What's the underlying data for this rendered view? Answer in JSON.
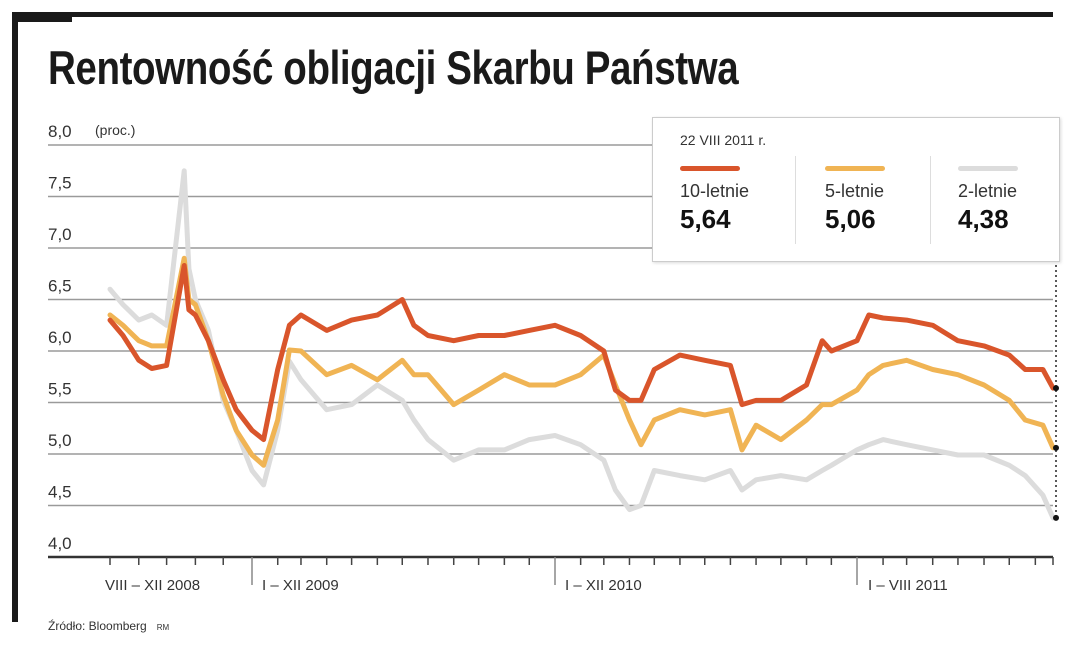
{
  "title": "Rentowność obligacji Skarbu Państwa",
  "source": "Źródło: Bloomberg",
  "credit": "RM",
  "legend": {
    "date": "22 VIII 2011 r.",
    "items": [
      {
        "name": "10-letnie",
        "value": "5,64",
        "color": "#d9552b"
      },
      {
        "name": "5-letnie",
        "value": "5,06",
        "color": "#f0b454"
      },
      {
        "name": "2-letnie",
        "value": "4,38",
        "color": "#dcdcdc"
      }
    ]
  },
  "chart_data": {
    "type": "line",
    "title": "Rentowność obligacji Skarbu Państwa",
    "ylabel": "(proc.)",
    "ylim": [
      4.0,
      8.0
    ],
    "yticks": [
      "8,0",
      "7,5",
      "7,0",
      "6,5",
      "6,0",
      "5,5",
      "5,0",
      "4,5",
      "4,0"
    ],
    "grid": true,
    "legend_position": "top-right",
    "x_periods": [
      "VIII – XII 2008",
      "I – XII 2009",
      "I – XII 2010",
      "I – VIII 2011"
    ],
    "x": [
      "2008-08-01",
      "2008-08-15",
      "2008-09-01",
      "2008-09-15",
      "2008-10-01",
      "2008-10-20",
      "2008-10-25",
      "2008-11-01",
      "2008-11-15",
      "2008-12-01",
      "2008-12-15",
      "2009-01-01",
      "2009-01-15",
      "2009-02-01",
      "2009-02-15",
      "2009-03-01",
      "2009-04-01",
      "2009-05-01",
      "2009-06-01",
      "2009-07-01",
      "2009-07-15",
      "2009-08-01",
      "2009-09-01",
      "2009-10-01",
      "2009-11-01",
      "2009-12-01",
      "2010-01-01",
      "2010-02-01",
      "2010-03-01",
      "2010-03-15",
      "2010-04-01",
      "2010-04-15",
      "2010-05-01",
      "2010-06-01",
      "2010-07-01",
      "2010-08-01",
      "2010-08-15",
      "2010-09-01",
      "2010-10-01",
      "2010-11-01",
      "2010-11-20",
      "2010-12-01",
      "2011-01-01",
      "2011-01-15",
      "2011-02-01",
      "2011-03-01",
      "2011-04-01",
      "2011-05-01",
      "2011-06-01",
      "2011-07-01",
      "2011-07-20",
      "2011-08-10",
      "2011-08-22"
    ],
    "series": [
      {
        "name": "2-letnie",
        "color": "#dcdcdc",
        "values": [
          6.6,
          6.45,
          6.3,
          6.35,
          6.25,
          7.75,
          6.8,
          6.5,
          6.2,
          5.52,
          5.23,
          4.84,
          4.7,
          5.23,
          5.9,
          5.72,
          5.43,
          5.48,
          5.67,
          5.52,
          5.33,
          5.14,
          4.94,
          5.04,
          5.04,
          5.14,
          5.18,
          5.09,
          4.94,
          4.65,
          4.46,
          4.5,
          4.84,
          4.79,
          4.75,
          4.84,
          4.65,
          4.75,
          4.79,
          4.75,
          4.84,
          4.89,
          5.04,
          5.09,
          5.14,
          5.09,
          5.04,
          4.99,
          4.99,
          4.89,
          4.79,
          4.6,
          4.38
        ]
      },
      {
        "name": "5-letnie",
        "color": "#f0b454",
        "values": [
          6.35,
          6.25,
          6.1,
          6.05,
          6.05,
          6.9,
          6.5,
          6.45,
          6.1,
          5.57,
          5.23,
          4.99,
          4.89,
          5.33,
          6.01,
          6.0,
          5.77,
          5.86,
          5.72,
          5.91,
          5.77,
          5.77,
          5.48,
          5.62,
          5.77,
          5.67,
          5.67,
          5.77,
          5.96,
          5.67,
          5.33,
          5.09,
          5.33,
          5.43,
          5.38,
          5.43,
          5.04,
          5.28,
          5.14,
          5.33,
          5.48,
          5.48,
          5.62,
          5.77,
          5.86,
          5.91,
          5.82,
          5.77,
          5.67,
          5.52,
          5.33,
          5.28,
          5.06
        ]
      },
      {
        "name": "10-letnie",
        "color": "#d9552b",
        "values": [
          6.3,
          6.15,
          5.91,
          5.83,
          5.86,
          6.83,
          6.4,
          6.35,
          6.1,
          5.72,
          5.43,
          5.23,
          5.14,
          5.82,
          6.25,
          6.35,
          6.2,
          6.3,
          6.35,
          6.5,
          6.25,
          6.15,
          6.1,
          6.15,
          6.15,
          6.2,
          6.25,
          6.15,
          6.0,
          5.62,
          5.52,
          5.52,
          5.82,
          5.96,
          5.91,
          5.86,
          5.48,
          5.52,
          5.52,
          5.67,
          6.1,
          6.0,
          6.1,
          6.35,
          6.32,
          6.3,
          6.25,
          6.1,
          6.05,
          5.96,
          5.82,
          5.82,
          5.64
        ]
      }
    ]
  }
}
